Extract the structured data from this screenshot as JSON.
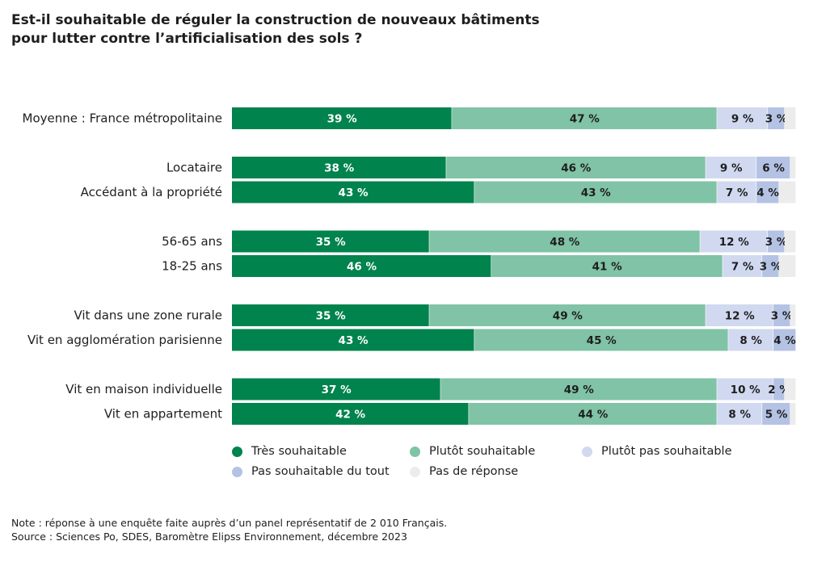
{
  "title": {
    "line1": "Est-il souhaitable de réguler la construction de nouveaux bâtiments",
    "line2": "pour lutter contre l’artificialisation des sols ?"
  },
  "colors": {
    "tres_souhaitable": "#00834d",
    "plutot_souhaitable": "#80c3a6",
    "plutot_pas_souhaitable": "#d1d9f0",
    "pas_souhaitable_du_tout": "#b4c2e4",
    "pas_de_reponse": "#ececec"
  },
  "chart_data": {
    "type": "bar",
    "orientation": "horizontal",
    "stacked": true,
    "title": "Est-il souhaitable de réguler la construction de nouveaux bâtiments pour lutter contre l’artificialisation des sols ?",
    "xlabel": "",
    "ylabel": "",
    "xlim": [
      0,
      100
    ],
    "unit": "%",
    "categories": [
      "Moyenne : France métropolitaine",
      "Locataire",
      "Accédant à la propriété",
      "56-65 ans",
      "18-25 ans",
      "Vit dans une zone rurale",
      "Vit en agglomération parisienne",
      "Vit en maison individuelle",
      "Vit en appartement"
    ],
    "groups": [
      [
        0
      ],
      [
        1,
        2
      ],
      [
        3,
        4
      ],
      [
        5,
        6
      ],
      [
        7,
        8
      ]
    ],
    "series": [
      {
        "name": "Très souhaitable",
        "color_key": "tres_souhaitable",
        "values": [
          39,
          38,
          43,
          35,
          46,
          35,
          43,
          37,
          42
        ]
      },
      {
        "name": "Plutôt souhaitable",
        "color_key": "plutot_souhaitable",
        "values": [
          47,
          46,
          43,
          48,
          41,
          49,
          45,
          49,
          44
        ]
      },
      {
        "name": "Plutôt pas souhaitable",
        "color_key": "plutot_pas_souhaitable",
        "values": [
          9,
          9,
          7,
          12,
          7,
          12,
          8,
          10,
          8
        ]
      },
      {
        "name": "Pas souhaitable du tout",
        "color_key": "pas_souhaitable_du_tout",
        "values": [
          3,
          6,
          4,
          3,
          3,
          3,
          4,
          2,
          5
        ]
      },
      {
        "name": "Pas de réponse",
        "color_key": "pas_de_reponse",
        "values": [
          2,
          1,
          3,
          2,
          3,
          1,
          0,
          2,
          1
        ]
      }
    ],
    "labeled_series": [
      0,
      1,
      2,
      3
    ],
    "legend": "bottom"
  },
  "legend": [
    {
      "label": "Très souhaitable",
      "color_key": "tres_souhaitable"
    },
    {
      "label": "Plutôt souhaitable",
      "color_key": "plutot_souhaitable"
    },
    {
      "label": "Plutôt pas souhaitable",
      "color_key": "plutot_pas_souhaitable"
    },
    {
      "label": "Pas souhaitable du tout",
      "color_key": "pas_souhaitable_du_tout"
    },
    {
      "label": "Pas de réponse",
      "color_key": "pas_de_reponse"
    }
  ],
  "notes": {
    "note": "Note : réponse à une enquête faite auprès d’un panel représentatif de 2 010 Français.",
    "source": "Source : Sciences Po, SDES, Baromètre Elipss Environnement, décembre 2023"
  }
}
